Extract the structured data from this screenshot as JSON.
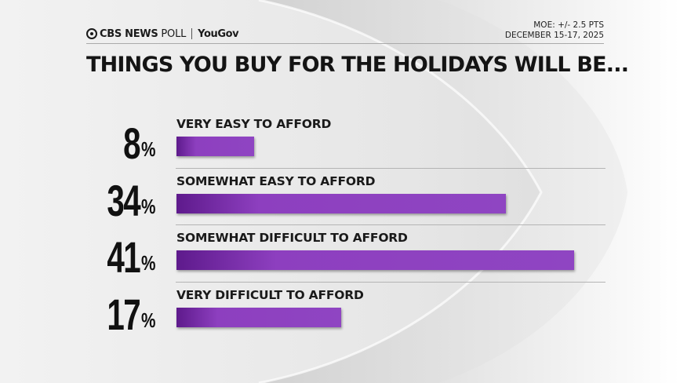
{
  "header": {
    "brand_cbs": "CBS NEWS",
    "brand_poll": "POLL",
    "brand_yougov": "YouGov",
    "moe": "MOE: +/- 2.5 PTS",
    "dates": "DECEMBER 15-17, 2025"
  },
  "colors": {
    "bar_start": "#5e1a8c",
    "bar_end": "#8f45c2",
    "text": "#141414",
    "background": "#e9e9e9"
  },
  "chart_data": {
    "type": "bar",
    "orientation": "horizontal",
    "title": "THINGS YOU BUY FOR THE HOLIDAYS WILL BE...",
    "categories": [
      "VERY EASY TO AFFORD",
      "SOMEWHAT EASY TO AFFORD",
      "SOMEWHAT DIFFICULT TO AFFORD",
      "VERY DIFFICULT TO AFFORD"
    ],
    "values": [
      8,
      34,
      41,
      17
    ],
    "value_labels": [
      "8",
      "34",
      "41",
      "17"
    ],
    "unit": "%",
    "xlim": [
      0,
      41
    ],
    "grid": false,
    "legend": "none"
  }
}
